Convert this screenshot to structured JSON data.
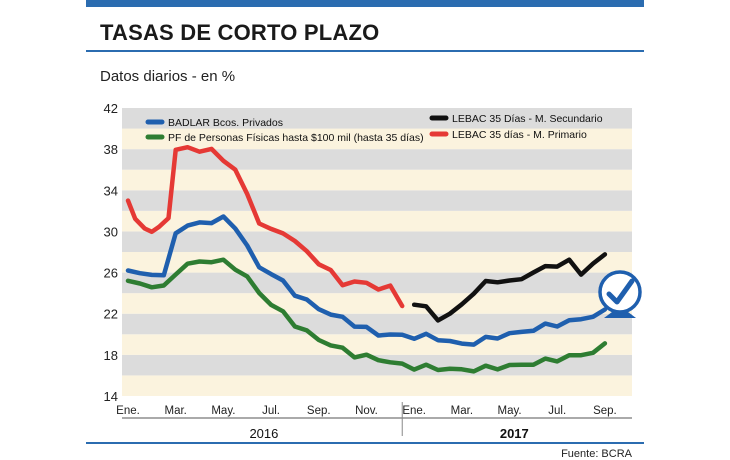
{
  "header": {
    "title": "TASAS DE CORTO PLAZO",
    "subtitle": "Datos diarios - en %",
    "source": "Fuente: BCRA"
  },
  "colors": {
    "accent": "#2b6cb0",
    "band_light": "#fbf3de",
    "band_dark": "#dcdcdc",
    "badlar": "#1f5fae",
    "pf": "#2e7d32",
    "lebac_sec": "#111111",
    "lebac_prim": "#e53935"
  },
  "chart_data": {
    "type": "line",
    "ylim": [
      14,
      42
    ],
    "yticks": [
      "14",
      "18",
      "22",
      "26",
      "30",
      "34",
      "38",
      "42"
    ],
    "x_month_labels": [
      "Ene.",
      "Mar.",
      "May.",
      "Jul.",
      "Sep.",
      "Nov.",
      "Ene.",
      "Mar.",
      "May.",
      "Jul.",
      "Sep."
    ],
    "x_month_index": [
      0,
      2,
      4,
      6,
      8,
      10,
      12,
      14,
      16,
      18,
      20
    ],
    "x_year_labels": [
      {
        "label": "2016",
        "bold": false
      },
      {
        "label": "2017",
        "bold": true
      }
    ],
    "legend": [
      {
        "name": "BADLAR Bcos. Privados",
        "key": "badlar"
      },
      {
        "name": "PF de Personas Físicas hasta $100 mil (hasta 35 días)",
        "key": "pf"
      },
      {
        "name": "LEBAC 35 Días - M. Secundario",
        "key": "lebac_sec"
      },
      {
        "name": "LEBAC 35 días - M. Primario",
        "key": "lebac_prim"
      }
    ],
    "series": [
      {
        "name": "BADLAR Bcos. Privados",
        "key": "badlar",
        "x": [
          0,
          0.5,
          1,
          1.5,
          2,
          2.5,
          3,
          3.5,
          4,
          4.5,
          5,
          5.5,
          6,
          6.5,
          7,
          7.5,
          8,
          8.5,
          9,
          9.5,
          10,
          10.5,
          11,
          11.5,
          12,
          12.5,
          13,
          13.5,
          14,
          14.5,
          15,
          15.5,
          16,
          16.5,
          17,
          17.5,
          18,
          18.5,
          19,
          19.5,
          20
        ],
        "values": [
          26.2,
          25.8,
          26.0,
          25.5,
          30.0,
          30.5,
          30.8,
          31.0,
          31.2,
          30.5,
          28.5,
          26.5,
          26.0,
          25.0,
          24.0,
          23.2,
          22.5,
          22.0,
          21.5,
          21.0,
          20.5,
          20.0,
          20.0,
          19.8,
          19.8,
          19.8,
          19.6,
          19.3,
          19.0,
          19.2,
          19.5,
          19.8,
          20.0,
          20.2,
          20.5,
          20.8,
          21.0,
          21.2,
          21.5,
          21.8,
          22.2
        ]
      },
      {
        "name": "PF de Personas Físicas hasta $100 mil (hasta 35 días)",
        "key": "pf",
        "x": [
          0,
          0.5,
          1,
          1.5,
          2,
          2.5,
          3,
          3.5,
          4,
          4.5,
          5,
          5.5,
          6,
          6.5,
          7,
          7.5,
          8,
          8.5,
          9,
          9.5,
          10,
          10.5,
          11,
          11.5,
          12,
          12.5,
          13,
          13.5,
          14,
          14.5,
          15,
          15.5,
          16,
          16.5,
          17,
          17.5,
          18,
          18.5,
          19,
          19.5,
          20
        ],
        "values": [
          25.2,
          24.8,
          24.8,
          24.5,
          26.0,
          26.8,
          27.0,
          27.2,
          27.0,
          26.5,
          25.5,
          24.0,
          23.0,
          22.0,
          21.0,
          20.2,
          19.5,
          19.0,
          18.5,
          18.0,
          17.8,
          17.6,
          17.3,
          17.0,
          16.8,
          16.8,
          16.7,
          16.6,
          16.5,
          16.6,
          16.7,
          16.8,
          16.9,
          17.0,
          17.2,
          17.4,
          17.6,
          17.8,
          18.0,
          18.3,
          18.9
        ]
      },
      {
        "name": "LEBAC 35 Días - M. Secundario",
        "key": "lebac_sec",
        "x": [
          12,
          12.5,
          13,
          13.5,
          14,
          14.5,
          15,
          15.5,
          16,
          16.5,
          17,
          17.5,
          18,
          18.5,
          19,
          19.5,
          20
        ],
        "values": [
          23.0,
          22.5,
          21.6,
          21.8,
          23.0,
          24.0,
          25.0,
          25.3,
          25.0,
          25.5,
          26.0,
          26.5,
          26.8,
          27.0,
          26.0,
          26.8,
          27.7
        ]
      },
      {
        "name": "LEBAC 35 días - M. Primario",
        "key": "lebac_prim",
        "x": [
          0,
          0.3,
          0.7,
          1,
          1.3,
          1.7,
          2,
          2.5,
          3,
          3.5,
          4,
          4.5,
          5,
          5.5,
          6,
          6.5,
          7,
          7.5,
          8,
          8.5,
          9,
          9.5,
          10,
          10.5,
          11,
          11.5
        ],
        "values": [
          33.0,
          31.0,
          30.5,
          30.0,
          30.2,
          31.5,
          38.0,
          38.0,
          38.0,
          37.8,
          37.0,
          36.0,
          33.5,
          31.0,
          30.0,
          30.0,
          29.0,
          28.0,
          27.0,
          26.0,
          25.0,
          25.0,
          25.0,
          24.5,
          24.5,
          23.0
        ]
      }
    ]
  }
}
